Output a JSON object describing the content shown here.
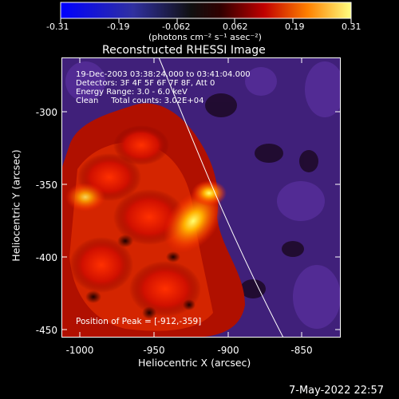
{
  "colorbar": {
    "ticks": [
      "-0.31",
      "-0.19",
      "-0.062",
      "0.062",
      "0.19",
      "0.31"
    ],
    "units": "(photons cm⁻² s⁻¹ asec⁻²)"
  },
  "title": "Reconstructed RHESSI Image",
  "info": {
    "line1": "19-Dec-2003 03:38:24.000 to 03:41:04.000",
    "line2": "Detectors: 3F 4F 5F 6F 7F 8F, Att 0",
    "line3": "Energy Range: 3.0 - 6.0 keV",
    "line4": "Clean     Total counts: 3.02E+04"
  },
  "peak_label": "Position of Peak = [-912,-359]",
  "axes": {
    "xlabel": "Heliocentric X (arcsec)",
    "ylabel": "Heliocentric Y (arcsec)",
    "xticks": [
      "-1000",
      "-950",
      "-900",
      "-850"
    ],
    "yticks": [
      "-300",
      "-350",
      "-400",
      "-450"
    ]
  },
  "timestamp": "7-May-2022 22:57",
  "colors": {
    "background": "#000000",
    "limb_line": "#ffffff"
  }
}
